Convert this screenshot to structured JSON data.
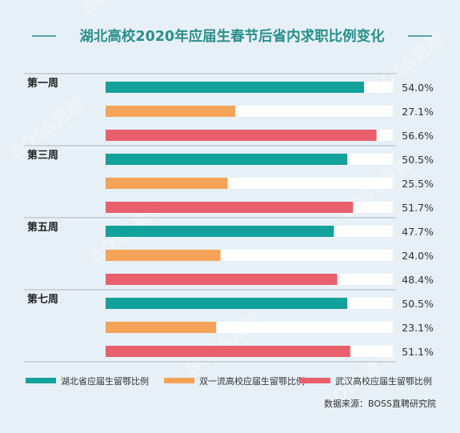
{
  "chart_data": {
    "type": "bar",
    "orientation": "horizontal",
    "title": "湖北高校2020年应届生春节后省内求职比例变化",
    "categories": [
      "第一周",
      "第三周",
      "第五周",
      "第七周"
    ],
    "series": [
      {
        "name": "湖北省应届生留鄂比例",
        "color": "#13a19b",
        "values": [
          54.0,
          50.5,
          47.7,
          50.5
        ],
        "labels": [
          "54.0%",
          "50.5%",
          "47.7%",
          "50.5%"
        ]
      },
      {
        "name": "双一流高校应届生留鄂比例",
        "color": "#f6a257",
        "values": [
          27.1,
          25.5,
          24.0,
          23.1
        ],
        "labels": [
          "27.1%",
          "25.5%",
          "24.0%",
          "23.1%"
        ]
      },
      {
        "name": "武汉高校应届生留鄂比例",
        "color": "#e9606c",
        "values": [
          56.6,
          51.7,
          48.4,
          51.1
        ],
        "labels": [
          "56.6%",
          "51.7%",
          "48.4%",
          "51.1%"
        ]
      }
    ],
    "xlim": [
      0,
      60
    ],
    "grid": false,
    "legend_position": "bottom",
    "source": "数据来源：BOSS直聘研究院",
    "watermark": "BOSS直聘"
  }
}
